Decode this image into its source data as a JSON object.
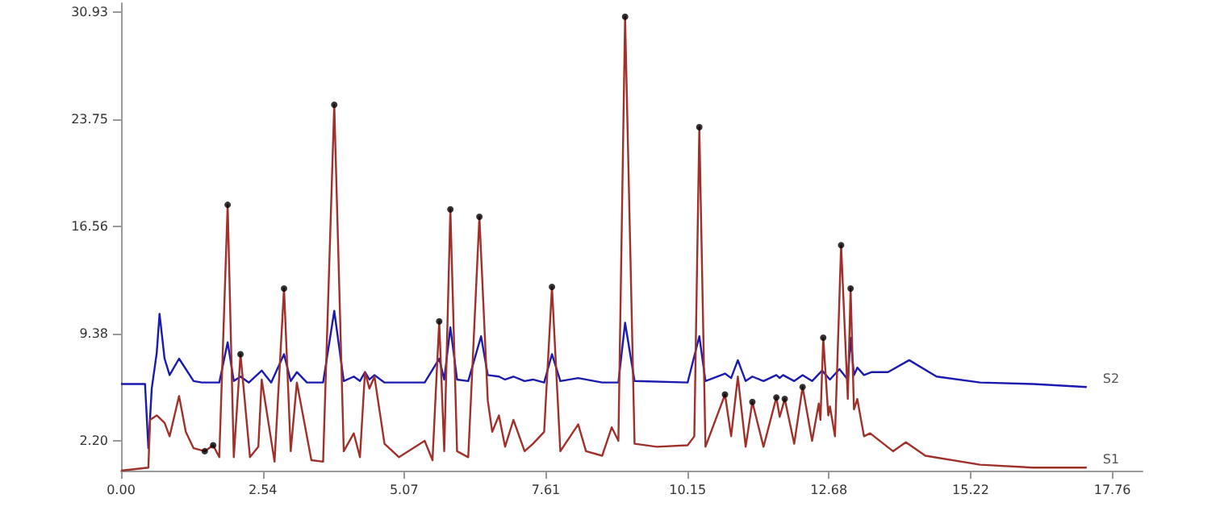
{
  "chart_data": {
    "type": "line",
    "xlim": [
      0,
      18.3
    ],
    "ylim": [
      0.2,
      31.5
    ],
    "xticks": [
      {
        "value": 0,
        "label": "0.00"
      },
      {
        "value": 2.54,
        "label": "2.54"
      },
      {
        "value": 5.07,
        "label": "5.07"
      },
      {
        "value": 7.61,
        "label": "7.61"
      },
      {
        "value": 10.15,
        "label": "10.15"
      },
      {
        "value": 12.68,
        "label": "12.68"
      },
      {
        "value": 15.22,
        "label": "15.22"
      },
      {
        "value": 17.76,
        "label": "17.76"
      }
    ],
    "yticks": [
      {
        "value": 2.2,
        "label": "2.20"
      },
      {
        "value": 9.38,
        "label": "9.38"
      },
      {
        "value": 16.56,
        "label": "16.56"
      },
      {
        "value": 23.75,
        "label": "23.75"
      },
      {
        "value": 30.93,
        "label": "30.93"
      }
    ],
    "grid": false,
    "legend": false,
    "marker": "none",
    "line_style": "solid",
    "series": [
      {
        "name": "S2",
        "color": "#1a1ab0",
        "x": [
          0,
          0.43,
          0.49,
          0.55,
          0.64,
          0.69,
          0.78,
          0.87,
          1.04,
          1.3,
          1.45,
          1.76,
          1.91,
          2.02,
          2.14,
          2.29,
          2.52,
          2.69,
          2.92,
          3.04,
          3.15,
          3.33,
          3.62,
          3.82,
          3.99,
          4.17,
          4.28,
          4.37,
          4.45,
          4.54,
          4.72,
          5.44,
          5.7,
          5.79,
          5.9,
          6.02,
          6.22,
          6.45,
          6.57,
          6.77,
          6.88,
          7.03,
          7.23,
          7.38,
          7.58,
          7.72,
          7.87,
          8.19,
          8.62,
          8.91,
          9.03,
          9.2,
          10.15,
          10.36,
          10.47,
          10.82,
          10.93,
          11.05,
          11.19,
          11.31,
          11.51,
          11.74,
          11.8,
          11.86,
          12.06,
          12.21,
          12.38,
          12.56,
          12.7,
          12.87,
          13.02,
          13.07,
          13.13,
          13.19,
          13.31,
          13.45,
          13.74,
          14.12,
          14.61,
          15.39,
          16.34,
          17.3
        ],
        "values": [
          6.0,
          6.0,
          1.7,
          5.7,
          8.1,
          10.7,
          7.7,
          6.6,
          7.7,
          6.2,
          6.1,
          6.1,
          8.8,
          6.2,
          6.5,
          6.1,
          6.9,
          6.1,
          8.0,
          6.2,
          6.8,
          6.1,
          6.1,
          10.9,
          6.2,
          6.5,
          6.2,
          6.8,
          6.3,
          6.6,
          6.1,
          6.1,
          7.7,
          6.3,
          9.8,
          6.3,
          6.2,
          9.2,
          6.6,
          6.5,
          6.3,
          6.5,
          6.2,
          6.3,
          6.1,
          8.0,
          6.2,
          6.4,
          6.1,
          6.1,
          10.1,
          6.2,
          6.1,
          9.2,
          6.2,
          6.7,
          6.4,
          7.6,
          6.2,
          6.5,
          6.2,
          6.6,
          6.4,
          6.6,
          6.2,
          6.6,
          6.2,
          6.9,
          6.3,
          7.0,
          6.3,
          9.1,
          6.6,
          7.1,
          6.6,
          6.8,
          6.8,
          7.6,
          6.5,
          6.1,
          6.0,
          5.8
        ]
      },
      {
        "name": "S1",
        "color": "#a0302a",
        "x": [
          0,
          0.49,
          0.52,
          0.64,
          0.78,
          0.87,
          1.04,
          1.16,
          1.3,
          1.5,
          1.65,
          1.76,
          1.91,
          2.02,
          2.14,
          2.31,
          2.46,
          2.52,
          2.75,
          2.92,
          3.04,
          3.15,
          3.41,
          3.62,
          3.82,
          3.99,
          4.17,
          4.28,
          4.37,
          4.45,
          4.54,
          4.72,
          4.98,
          5.44,
          5.58,
          5.7,
          5.79,
          5.9,
          6.02,
          6.22,
          6.42,
          6.57,
          6.65,
          6.77,
          6.88,
          7.03,
          7.23,
          7.38,
          7.58,
          7.72,
          7.87,
          8.19,
          8.33,
          8.62,
          8.79,
          8.91,
          9.03,
          9.2,
          9.6,
          10.15,
          10.27,
          10.36,
          10.47,
          10.82,
          10.93,
          11.05,
          11.19,
          11.31,
          11.51,
          11.74,
          11.8,
          11.89,
          12.06,
          12.21,
          12.38,
          12.5,
          12.53,
          12.58,
          12.67,
          12.7,
          12.79,
          12.9,
          13.02,
          13.07,
          13.13,
          13.19,
          13.31,
          13.42,
          13.83,
          14.06,
          14.41,
          15.39,
          16.34,
          17.3
        ],
        "values": [
          0.2,
          0.4,
          3.6,
          3.9,
          3.4,
          2.5,
          5.2,
          2.8,
          1.7,
          1.5,
          1.9,
          1.1,
          18.0,
          1.1,
          8.0,
          1.1,
          1.8,
          6.3,
          0.8,
          12.4,
          1.5,
          6.1,
          0.9,
          0.8,
          24.7,
          1.5,
          2.7,
          1.1,
          6.8,
          5.7,
          6.5,
          2.0,
          1.1,
          2.2,
          0.9,
          10.2,
          1.5,
          17.7,
          1.5,
          1.1,
          17.2,
          4.9,
          2.8,
          3.9,
          1.8,
          3.6,
          1.5,
          2.0,
          2.8,
          12.5,
          1.5,
          3.3,
          1.5,
          1.2,
          3.1,
          2.2,
          30.6,
          2.0,
          1.8,
          1.9,
          2.5,
          23.2,
          1.8,
          5.3,
          2.5,
          6.5,
          1.8,
          4.8,
          1.8,
          5.1,
          3.8,
          5.0,
          2.0,
          5.8,
          2.2,
          4.7,
          3.6,
          9.1,
          3.9,
          4.5,
          2.5,
          15.3,
          5.0,
          12.4,
          4.3,
          5.0,
          2.5,
          2.7,
          1.5,
          2.1,
          1.2,
          0.6,
          0.4,
          0.4
        ]
      },
      {
        "type": "scatter",
        "marker": "circle",
        "color": "#000000",
        "x": [
          1.5,
          1.65,
          1.91,
          2.14,
          2.92,
          3.82,
          5.7,
          5.9,
          6.42,
          7.72,
          9.03,
          10.36,
          10.82,
          11.31,
          11.74,
          11.89,
          12.21,
          12.58,
          12.9,
          13.07
        ],
        "values": [
          1.5,
          1.9,
          18.0,
          8.0,
          12.4,
          24.7,
          10.2,
          17.7,
          17.2,
          12.5,
          30.6,
          23.2,
          5.3,
          4.8,
          5.1,
          5.0,
          5.8,
          9.1,
          15.3,
          12.4
        ]
      }
    ]
  }
}
